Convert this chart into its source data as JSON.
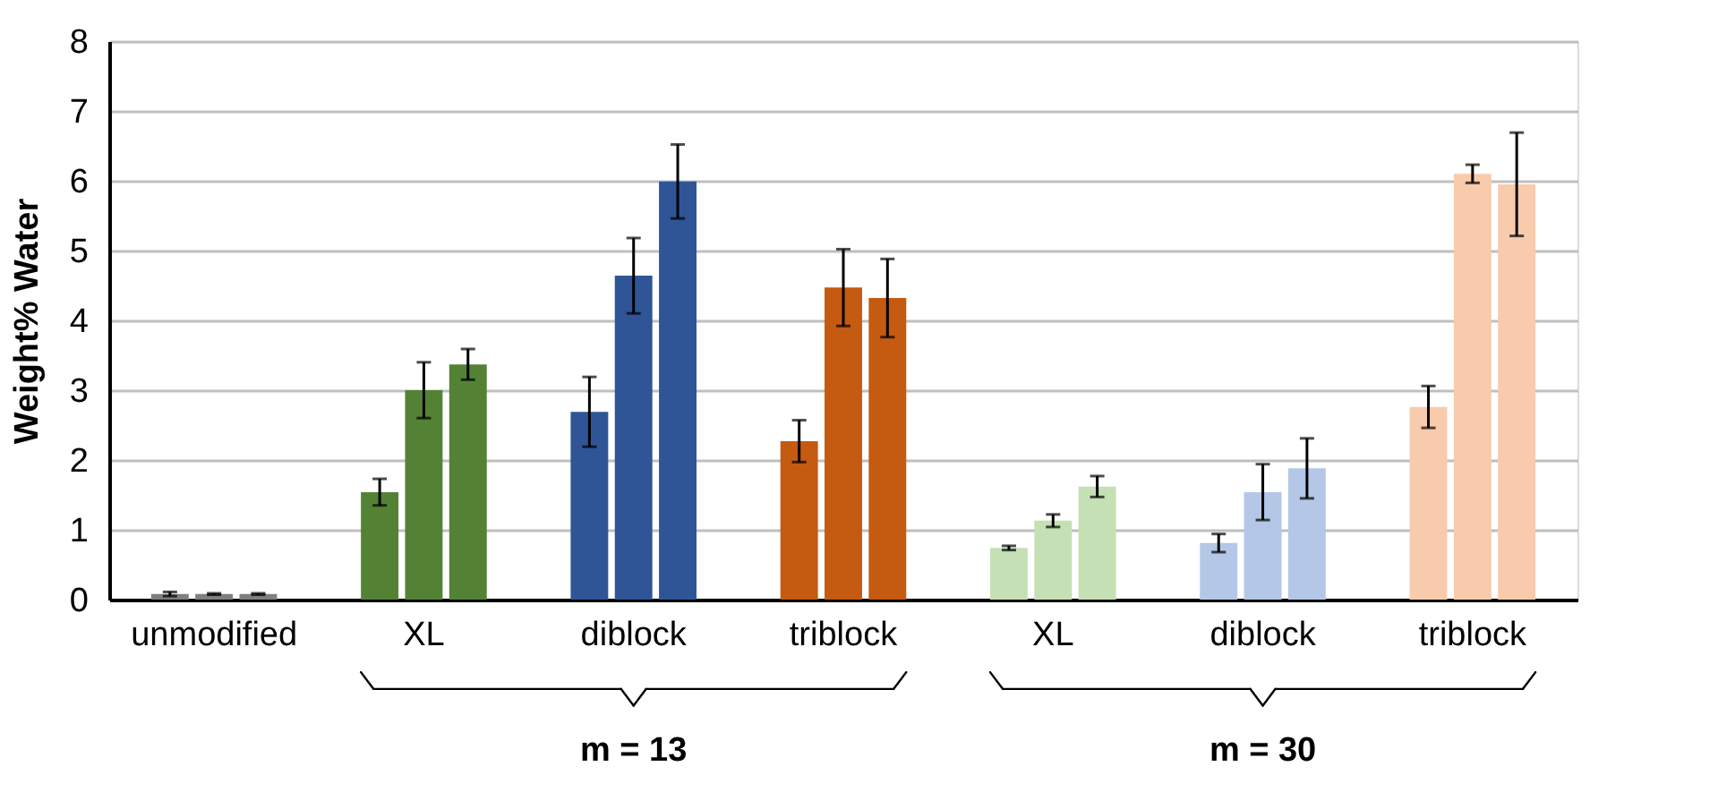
{
  "chart_data": {
    "type": "bar",
    "ylabel": "Weight% Water",
    "categories": [
      "unmodified",
      "XL",
      "diblock",
      "triblock",
      "XL",
      "diblock",
      "triblock"
    ],
    "series": [
      {
        "colors": [
          "#7f7f7f",
          "#548235",
          "#2f5597",
          "#c55a11",
          "#c5e0b4",
          "#b4c7e7",
          "#f8cbad"
        ],
        "values": [
          0.08,
          1.54,
          2.69,
          2.27,
          0.74,
          0.81,
          2.76
        ],
        "errors": [
          0.03,
          0.19,
          0.5,
          0.3,
          0.03,
          0.13,
          0.3
        ]
      },
      {
        "colors": [
          "#7f7f7f",
          "#548235",
          "#2f5597",
          "#c55a11",
          "#c5e0b4",
          "#b4c7e7",
          "#f8cbad"
        ],
        "values": [
          0.08,
          3.0,
          4.64,
          4.47,
          1.13,
          1.54,
          6.1
        ],
        "errors": [
          0.01,
          0.4,
          0.54,
          0.55,
          0.09,
          0.4,
          0.13
        ]
      },
      {
        "colors": [
          "#7f7f7f",
          "#548235",
          "#2f5597",
          "#c55a11",
          "#c5e0b4",
          "#b4c7e7",
          "#f8cbad"
        ],
        "values": [
          0.08,
          3.37,
          5.99,
          4.32,
          1.62,
          1.88,
          5.95
        ],
        "errors": [
          0.01,
          0.22,
          0.53,
          0.56,
          0.15,
          0.43,
          0.74
        ]
      }
    ],
    "ylim": [
      0,
      8
    ],
    "yticks": [
      0,
      1,
      2,
      3,
      4,
      5,
      6,
      7,
      8
    ],
    "grid": "y",
    "legend": false,
    "annotations": [
      "m = 13",
      "m = 30"
    ]
  }
}
